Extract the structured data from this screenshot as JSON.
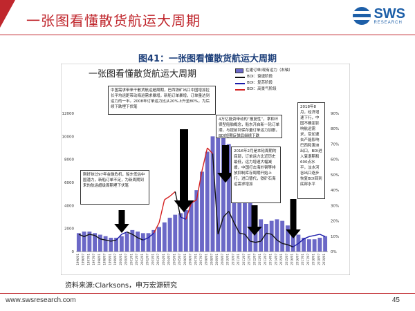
{
  "slide": {
    "title": "一张图看懂散货航运大周期",
    "figure_caption": "图41：一张图看懂散货航运大周期",
    "source": "资料来源:Clarksons，申万宏源研究",
    "footer_url": "www.swsresearch.com",
    "page_number": "45",
    "logo_main": "SWS",
    "logo_sub": "RESEARCH",
    "accent_color": "#c0272d",
    "brand_color": "#1d5fa8"
  },
  "chart_data": {
    "type": "bar",
    "title": "一张图看懂散货航运大周期",
    "legend": [
      "在建订单/现有运力（右轴）",
      "BDI：衰退阶段",
      "BDI：复苏阶段",
      "BDI：高景气阶段"
    ],
    "colors": {
      "bars": "#6b68c7",
      "recession": "#111111",
      "recovery": "#1a1aa8",
      "boom": "#d42020"
    },
    "left_axis": {
      "ticks": [
        "0",
        "2000",
        "4000",
        "6000",
        "8000",
        "10000",
        "12000"
      ],
      "ylim": [
        0,
        12000
      ]
    },
    "right_axis": {
      "ticks": [
        "0%",
        "10%",
        "20%",
        "30%",
        "40%",
        "50%",
        "60%",
        "70%",
        "80%",
        "90%"
      ],
      "ylim": [
        0,
        0.9
      ]
    },
    "x_labels": [
      "1996/01",
      "1996/07",
      "1997/01",
      "1997/07",
      "1998/01",
      "1998/07",
      "1999/01",
      "1999/07",
      "2000/01",
      "2000/07",
      "2001/01",
      "2001/07",
      "2002/01",
      "2002/07",
      "2003/01",
      "2003/07",
      "2004/01",
      "2004/07",
      "2005/01",
      "2005/07",
      "2006/01",
      "2006/07",
      "2007/01",
      "2007/07",
      "2008/01",
      "2008/07",
      "2009/01",
      "2009/07",
      "2010/01",
      "2010/07",
      "2011/01",
      "2011/07",
      "2012/01",
      "2012/07",
      "2013/01",
      "2013/07",
      "2014/01",
      "2014/07",
      "2015/01",
      "2015/07",
      "2016/01",
      "2016/07",
      "2017/01",
      "2017/07",
      "2018/01",
      "2018/07",
      "2019/01"
    ],
    "orderbook_ratio": [
      0.12,
      0.13,
      0.13,
      0.12,
      0.11,
      0.1,
      0.09,
      0.09,
      0.1,
      0.12,
      0.14,
      0.13,
      0.12,
      0.12,
      0.14,
      0.16,
      0.19,
      0.22,
      0.24,
      0.25,
      0.27,
      0.32,
      0.4,
      0.52,
      0.65,
      0.75,
      0.79,
      0.76,
      0.7,
      0.62,
      0.52,
      0.42,
      0.33,
      0.26,
      0.21,
      0.18,
      0.2,
      0.21,
      0.2,
      0.17,
      0.14,
      0.11,
      0.09,
      0.08,
      0.08,
      0.09,
      0.1
    ],
    "bdi": [
      1500,
      1300,
      1500,
      1400,
      1100,
      1000,
      900,
      1000,
      1500,
      1700,
      1500,
      1200,
      1000,
      1200,
      1600,
      2500,
      4500,
      4800,
      5200,
      3000,
      2800,
      4200,
      4500,
      7000,
      9000,
      8500,
      1500,
      3000,
      3500,
      2500,
      1600,
      1500,
      900,
      800,
      900,
      1600,
      1500,
      1000,
      700,
      600,
      400,
      700,
      1100,
      1300,
      1400,
      1500,
      1300
    ],
    "bdi_phase": [
      "recession",
      "recession",
      "recession",
      "recession",
      "recession",
      "recession",
      "recession",
      "recession",
      "recovery",
      "recovery",
      "recession",
      "recession",
      "recession",
      "recovery",
      "recovery",
      "boom",
      "boom",
      "boom",
      "boom",
      "recession",
      "recovery",
      "boom",
      "boom",
      "boom",
      "boom",
      "boom",
      "recession",
      "recession",
      "recession",
      "recession",
      "recession",
      "recession",
      "recession",
      "recession",
      "recession",
      "recession",
      "recession",
      "recession",
      "recession",
      "recession",
      "recession",
      "recovery",
      "recovery",
      "recovery",
      "recovery",
      "recovery",
      "recovery"
    ]
  },
  "notes": {
    "n1": "中国需求带来干散货航运超周期，巴西铁矿出口中国增加拉长平均运距带动海运需求暴增，新船订单暴增，订单量达到运力的一半。2008年订单运力比从20%上升至80%，为后续下跌埋下伏笔",
    "n2": "4万亿投资带动的“报复性”，拿和环保型船舶概念，船东开启新一轮订单潮，与提前到保存量订单运力加剧，BDI短期反弹后继续下跌",
    "n3": "刚好抹过97年金融危机，船东低估中国潜力，新船订单不足，为新周期到来的航运超级周期埋下伏笔",
    "n4": "2016年2月是本轮周期的底部，订单运力比近历史最低，运力增速大幅减缓，中国打击海外钢等排放抑制库存周期开始上行，进口替代，铁矿石海运需求增加",
    "n5": "2018年8月，经济增速下行，中国不确定影响航运需求，受加速去产能影响巴西和澳洲出口，BDI进入衰退期和600点水平，淡水河谷出口逐步恢复BDI回到底部水平"
  }
}
